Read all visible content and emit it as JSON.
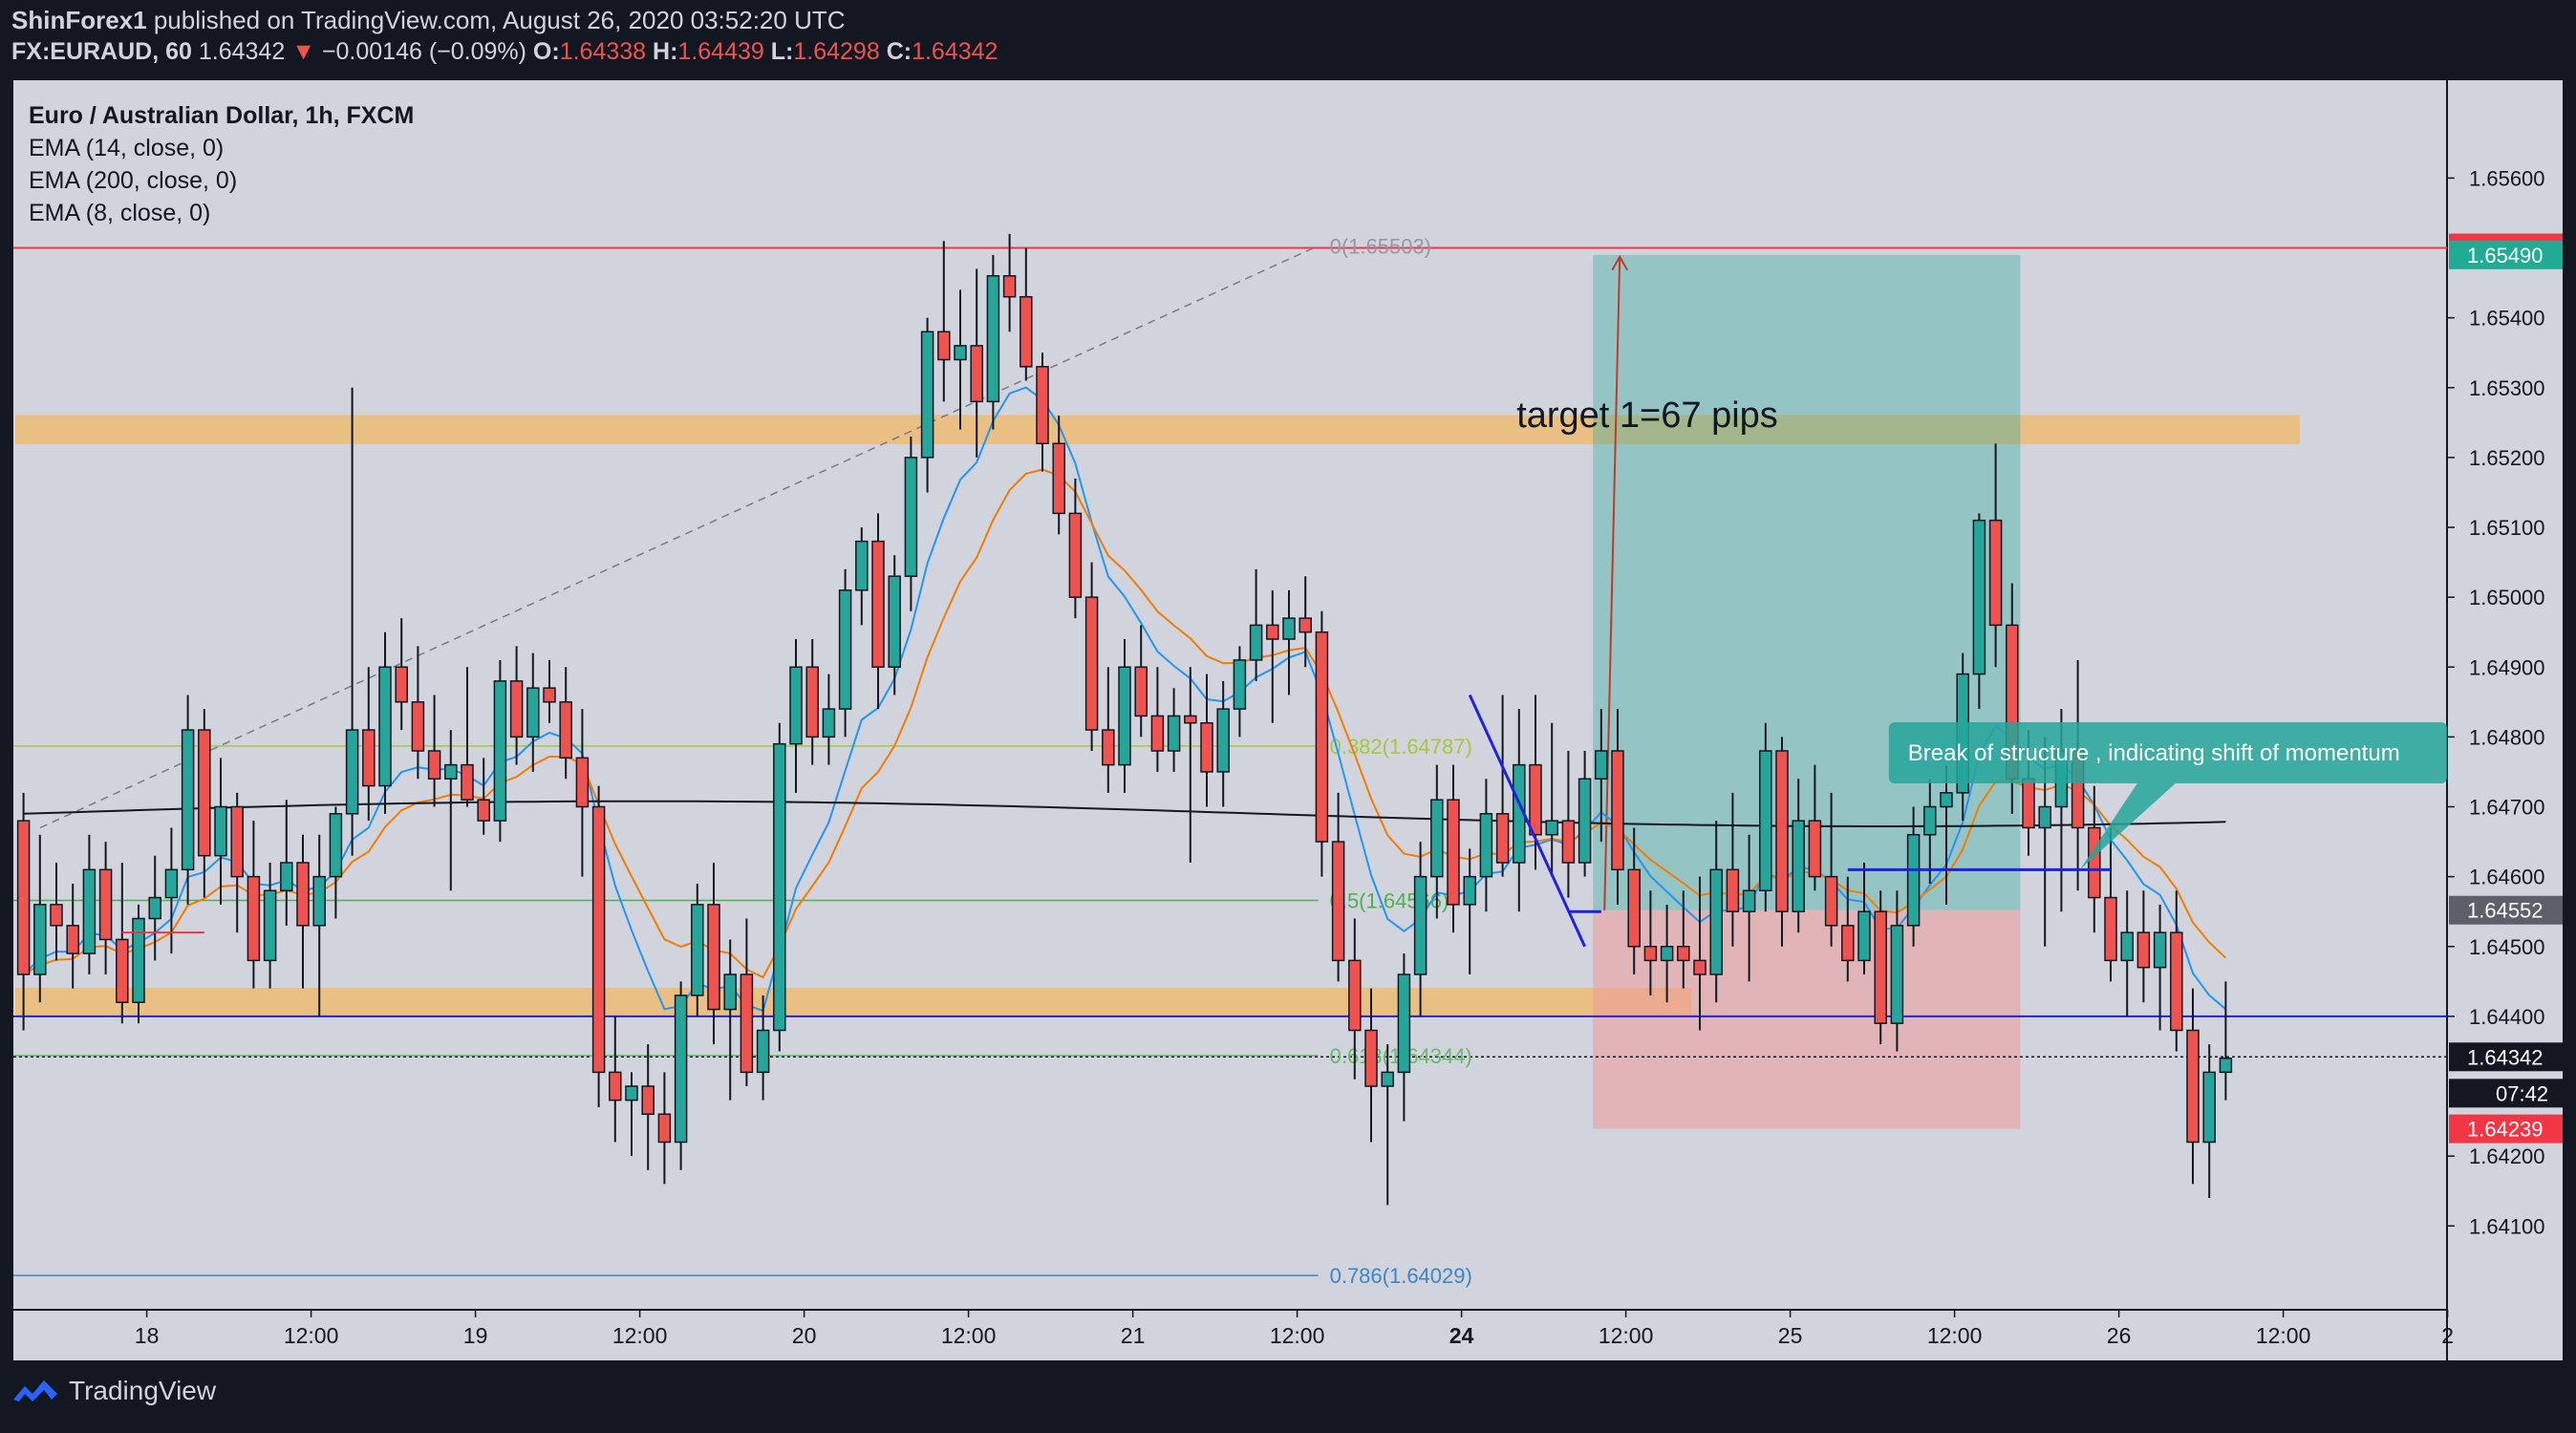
{
  "header": {
    "author": "ShinForex1",
    "published": "published on TradingView.com, August 26, 2020 03:52:20 UTC",
    "symbol": "FX:EURAUD, 60",
    "last": "1.64342",
    "change": "−0.00146 (−0.09%)",
    "open_label": "O:",
    "open": "1.64338",
    "high_label": "H:",
    "high": "1.64439",
    "low_label": "L:",
    "low": "1.64298",
    "close_label": "C:",
    "close": "1.64342"
  },
  "legend": {
    "title": "Euro / Australian Dollar, 1h, FXCM",
    "ema14": "EMA (14, close, 0)",
    "ema200": "EMA (200, close, 0)",
    "ema8": "EMA (8, close, 0)"
  },
  "footer": {
    "brand": "TradingView"
  },
  "chart_data": {
    "type": "candlestick",
    "symbol": "EURAUD",
    "interval": "1h",
    "ylim": [
      1.6398,
      1.6574
    ],
    "y_ticks": [
      "1.65600",
      "1.65400",
      "1.65300",
      "1.65200",
      "1.65100",
      "1.65000",
      "1.64900",
      "1.64800",
      "1.64700",
      "1.64600",
      "1.64500",
      "1.64400",
      "1.64200",
      "1.64100"
    ],
    "x_ticks": [
      {
        "bar": 8,
        "label": "18",
        "bold": false
      },
      {
        "bar": 18,
        "label": "12:00",
        "bold": false
      },
      {
        "bar": 28,
        "label": "19",
        "bold": false
      },
      {
        "bar": 38,
        "label": "12:00",
        "bold": false
      },
      {
        "bar": 48,
        "label": "20",
        "bold": false
      },
      {
        "bar": 58,
        "label": "12:00",
        "bold": false
      },
      {
        "bar": 68,
        "label": "21",
        "bold": false
      },
      {
        "bar": 78,
        "label": "12:00",
        "bold": false
      },
      {
        "bar": 88,
        "label": "24",
        "bold": true
      },
      {
        "bar": 98,
        "label": "12:00",
        "bold": false
      },
      {
        "bar": 108,
        "label": "25",
        "bold": false
      },
      {
        "bar": 118,
        "label": "12:00",
        "bold": false
      },
      {
        "bar": 128,
        "label": "26",
        "bold": false
      },
      {
        "bar": 138,
        "label": "12:00",
        "bold": false
      },
      {
        "bar": 148,
        "label": "2",
        "bold": false
      }
    ],
    "price_badges": [
      {
        "value": "1.65500",
        "price": 1.655,
        "color": "#f23645"
      },
      {
        "value": "1.65490",
        "price": 1.6549,
        "color": "#22ab94"
      },
      {
        "value": "1.64552",
        "price": 1.64552,
        "color": "#5d606b"
      },
      {
        "value": "1.64342",
        "price": 1.64342,
        "color": "#131722"
      },
      {
        "value": "07:42",
        "price": 1.6429,
        "color": "#131722"
      },
      {
        "value": "1.64239",
        "price": 1.64239,
        "color": "#f23645"
      }
    ],
    "fib_levels": [
      {
        "label": "0(1.65503)",
        "price": 1.65503,
        "color": "#9598a1"
      },
      {
        "label": "0.382(1.64787)",
        "price": 1.64787,
        "color": "#a5c93b"
      },
      {
        "label": "0.5(1.64566)",
        "price": 1.64566,
        "color": "#4caf50"
      },
      {
        "label": "0.618(1.64344)",
        "price": 1.64344,
        "color": "#66bb6a"
      },
      {
        "label": "0.786(1.64029)",
        "price": 1.64029,
        "color": "#3d85c6"
      }
    ],
    "zones": [
      {
        "name": "resistance",
        "price_top": 1.6525,
        "price_bottom": 1.6523,
        "x_from_bar": 0,
        "x_to_bar": 139
      },
      {
        "name": "support",
        "price_top": 1.6443,
        "price_bottom": 1.6441,
        "x_from_bar": 0,
        "x_to_bar": 102
      }
    ],
    "position": {
      "entry": 1.64552,
      "target": 1.6549,
      "stop": 1.64239,
      "from_bar": 96,
      "to_bar": 122,
      "target_label": "target 1=67 pips"
    },
    "annotation": {
      "text": "Break of structure  , indicating shift of momentum",
      "price": 1.6478
    },
    "horizontal_lines": [
      {
        "price": 1.655,
        "color": "#f23645"
      },
      {
        "price": 1.644,
        "color": "#1e22e0"
      }
    ],
    "candles_ohlc": [
      [
        1.6468,
        1.6472,
        1.6438,
        1.6446
      ],
      [
        1.6446,
        1.6466,
        1.6442,
        1.6456
      ],
      [
        1.6456,
        1.6462,
        1.6448,
        1.6453
      ],
      [
        1.6453,
        1.6459,
        1.6444,
        1.6449
      ],
      [
        1.6449,
        1.6466,
        1.6446,
        1.6461
      ],
      [
        1.6461,
        1.6465,
        1.6446,
        1.6451
      ],
      [
        1.6451,
        1.6462,
        1.6439,
        1.6442
      ],
      [
        1.6442,
        1.6456,
        1.6439,
        1.6454
      ],
      [
        1.6454,
        1.6463,
        1.6448,
        1.6457
      ],
      [
        1.6457,
        1.6467,
        1.6449,
        1.6461
      ],
      [
        1.6461,
        1.6486,
        1.6456,
        1.6481
      ],
      [
        1.6481,
        1.6484,
        1.6457,
        1.6463
      ],
      [
        1.6463,
        1.6477,
        1.6456,
        1.647
      ],
      [
        1.647,
        1.6472,
        1.6452,
        1.646
      ],
      [
        1.646,
        1.6468,
        1.6444,
        1.6448
      ],
      [
        1.6448,
        1.6462,
        1.6444,
        1.6458
      ],
      [
        1.6458,
        1.6471,
        1.6453,
        1.6462
      ],
      [
        1.6462,
        1.6466,
        1.6444,
        1.6453
      ],
      [
        1.6453,
        1.6466,
        1.644,
        1.646
      ],
      [
        1.646,
        1.647,
        1.6454,
        1.6469
      ],
      [
        1.6469,
        1.653,
        1.6463,
        1.6481
      ],
      [
        1.6481,
        1.649,
        1.6468,
        1.6473
      ],
      [
        1.6473,
        1.6495,
        1.6469,
        1.649
      ],
      [
        1.649,
        1.6497,
        1.6481,
        1.6485
      ],
      [
        1.6485,
        1.6493,
        1.6474,
        1.6478
      ],
      [
        1.6478,
        1.6486,
        1.647,
        1.6474
      ],
      [
        1.6474,
        1.6481,
        1.6458,
        1.6476
      ],
      [
        1.6476,
        1.649,
        1.647,
        1.6471
      ],
      [
        1.6471,
        1.6477,
        1.6466,
        1.6468
      ],
      [
        1.6468,
        1.6491,
        1.6465,
        1.6488
      ],
      [
        1.6488,
        1.6493,
        1.6476,
        1.648
      ],
      [
        1.648,
        1.6492,
        1.6475,
        1.6487
      ],
      [
        1.6487,
        1.6491,
        1.6482,
        1.6485
      ],
      [
        1.6485,
        1.649,
        1.6474,
        1.6477
      ],
      [
        1.6477,
        1.6484,
        1.646,
        1.647
      ],
      [
        1.647,
        1.6473,
        1.6427,
        1.6432
      ],
      [
        1.6432,
        1.644,
        1.6422,
        1.6428
      ],
      [
        1.6428,
        1.6432,
        1.642,
        1.643
      ],
      [
        1.643,
        1.6436,
        1.6418,
        1.6426
      ],
      [
        1.6426,
        1.6432,
        1.6416,
        1.6422
      ],
      [
        1.6422,
        1.6445,
        1.6418,
        1.6443
      ],
      [
        1.6443,
        1.6459,
        1.644,
        1.6456
      ],
      [
        1.6456,
        1.6462,
        1.6436,
        1.6441
      ],
      [
        1.6441,
        1.6451,
        1.6428,
        1.6446
      ],
      [
        1.6446,
        1.6454,
        1.643,
        1.6432
      ],
      [
        1.6432,
        1.6443,
        1.6428,
        1.6438
      ],
      [
        1.6438,
        1.6482,
        1.6435,
        1.6479
      ],
      [
        1.6479,
        1.6494,
        1.6472,
        1.649
      ],
      [
        1.649,
        1.6494,
        1.6476,
        1.648
      ],
      [
        1.648,
        1.6489,
        1.6476,
        1.6484
      ],
      [
        1.6484,
        1.6504,
        1.648,
        1.6501
      ],
      [
        1.6501,
        1.651,
        1.6496,
        1.6508
      ],
      [
        1.6508,
        1.6512,
        1.6484,
        1.649
      ],
      [
        1.649,
        1.6506,
        1.6486,
        1.6503
      ],
      [
        1.6503,
        1.6523,
        1.6498,
        1.652
      ],
      [
        1.652,
        1.654,
        1.6515,
        1.6538
      ],
      [
        1.6538,
        1.6551,
        1.6528,
        1.6534
      ],
      [
        1.6534,
        1.6544,
        1.6524,
        1.6536
      ],
      [
        1.6536,
        1.6547,
        1.652,
        1.6528
      ],
      [
        1.6528,
        1.6549,
        1.6524,
        1.6546
      ],
      [
        1.6546,
        1.6552,
        1.6538,
        1.6543
      ],
      [
        1.6543,
        1.655,
        1.6531,
        1.6533
      ],
      [
        1.6533,
        1.6535,
        1.6518,
        1.6522
      ],
      [
        1.6522,
        1.6526,
        1.6509,
        1.6512
      ],
      [
        1.6512,
        1.6517,
        1.6497,
        1.65
      ],
      [
        1.65,
        1.6505,
        1.6478,
        1.6481
      ],
      [
        1.6481,
        1.649,
        1.6472,
        1.6476
      ],
      [
        1.6476,
        1.6494,
        1.6472,
        1.649
      ],
      [
        1.649,
        1.6496,
        1.648,
        1.6483
      ],
      [
        1.6483,
        1.649,
        1.6475,
        1.6478
      ],
      [
        1.6478,
        1.6487,
        1.6475,
        1.6483
      ],
      [
        1.6483,
        1.649,
        1.6462,
        1.6482
      ],
      [
        1.6482,
        1.6489,
        1.647,
        1.6475
      ],
      [
        1.6475,
        1.6488,
        1.647,
        1.6484
      ],
      [
        1.6484,
        1.6493,
        1.648,
        1.6491
      ],
      [
        1.6491,
        1.6504,
        1.6488,
        1.6496
      ],
      [
        1.6496,
        1.6501,
        1.6482,
        1.6494
      ],
      [
        1.6494,
        1.6501,
        1.6486,
        1.6497
      ],
      [
        1.6497,
        1.6503,
        1.649,
        1.6495
      ],
      [
        1.6495,
        1.6498,
        1.646,
        1.6465
      ],
      [
        1.6465,
        1.6472,
        1.6445,
        1.6448
      ],
      [
        1.6448,
        1.6454,
        1.6431,
        1.6438
      ],
      [
        1.6438,
        1.6444,
        1.6422,
        1.643
      ],
      [
        1.643,
        1.6436,
        1.6413,
        1.6432
      ],
      [
        1.6432,
        1.6449,
        1.6425,
        1.6446
      ],
      [
        1.6446,
        1.6465,
        1.644,
        1.646
      ],
      [
        1.646,
        1.6476,
        1.6454,
        1.6471
      ],
      [
        1.6471,
        1.6476,
        1.6452,
        1.6456
      ],
      [
        1.6456,
        1.6464,
        1.6446,
        1.646
      ],
      [
        1.646,
        1.6474,
        1.6455,
        1.6469
      ],
      [
        1.6469,
        1.6486,
        1.646,
        1.6462
      ],
      [
        1.6462,
        1.6484,
        1.6455,
        1.6476
      ],
      [
        1.6476,
        1.6486,
        1.6461,
        1.6466
      ],
      [
        1.6466,
        1.6482,
        1.646,
        1.6468
      ],
      [
        1.6468,
        1.6478,
        1.6457,
        1.6462
      ],
      [
        1.6462,
        1.6478,
        1.646,
        1.6474
      ],
      [
        1.6474,
        1.6484,
        1.6465,
        1.6478
      ],
      [
        1.6478,
        1.6484,
        1.6456,
        1.6461
      ],
      [
        1.6461,
        1.6467,
        1.6446,
        1.645
      ],
      [
        1.645,
        1.6458,
        1.6443,
        1.6448
      ],
      [
        1.6448,
        1.6456,
        1.6442,
        1.645
      ],
      [
        1.645,
        1.6458,
        1.6444,
        1.6448
      ],
      [
        1.6448,
        1.646,
        1.6438,
        1.6446
      ],
      [
        1.6446,
        1.6468,
        1.6442,
        1.6461
      ],
      [
        1.6461,
        1.6472,
        1.645,
        1.6455
      ],
      [
        1.6455,
        1.6466,
        1.6445,
        1.6458
      ],
      [
        1.6458,
        1.6482,
        1.6455,
        1.6478
      ],
      [
        1.6478,
        1.648,
        1.645,
        1.6455
      ],
      [
        1.6455,
        1.6474,
        1.6452,
        1.6468
      ],
      [
        1.6468,
        1.6476,
        1.6458,
        1.646
      ],
      [
        1.646,
        1.6472,
        1.645,
        1.6453
      ],
      [
        1.6453,
        1.646,
        1.6445,
        1.6448
      ],
      [
        1.6448,
        1.6462,
        1.6446,
        1.6455
      ],
      [
        1.6455,
        1.6458,
        1.6436,
        1.6439
      ],
      [
        1.6439,
        1.6458,
        1.6435,
        1.6453
      ],
      [
        1.6453,
        1.647,
        1.645,
        1.6466
      ],
      [
        1.6466,
        1.6474,
        1.6459,
        1.647
      ],
      [
        1.647,
        1.6476,
        1.6456,
        1.6472
      ],
      [
        1.6472,
        1.6492,
        1.6468,
        1.6489
      ],
      [
        1.6489,
        1.6512,
        1.6484,
        1.6511
      ],
      [
        1.6511,
        1.6522,
        1.649,
        1.6496
      ],
      [
        1.6496,
        1.6502,
        1.6469,
        1.6474
      ],
      [
        1.6474,
        1.6481,
        1.6463,
        1.6467
      ],
      [
        1.6467,
        1.648,
        1.645,
        1.647
      ],
      [
        1.647,
        1.6484,
        1.6455,
        1.6478
      ],
      [
        1.6478,
        1.6491,
        1.6458,
        1.6467
      ],
      [
        1.6467,
        1.6473,
        1.6452,
        1.6457
      ],
      [
        1.6457,
        1.6467,
        1.6445,
        1.6448
      ],
      [
        1.6448,
        1.6458,
        1.644,
        1.6452
      ],
      [
        1.6452,
        1.6458,
        1.6442,
        1.6447
      ],
      [
        1.6447,
        1.6456,
        1.6438,
        1.6452
      ],
      [
        1.6452,
        1.6458,
        1.6435,
        1.6438
      ],
      [
        1.6438,
        1.6444,
        1.6416,
        1.6422
      ],
      [
        1.6422,
        1.6436,
        1.6414,
        1.6432
      ],
      [
        1.6432,
        1.6445,
        1.6428,
        1.6434
      ]
    ]
  }
}
